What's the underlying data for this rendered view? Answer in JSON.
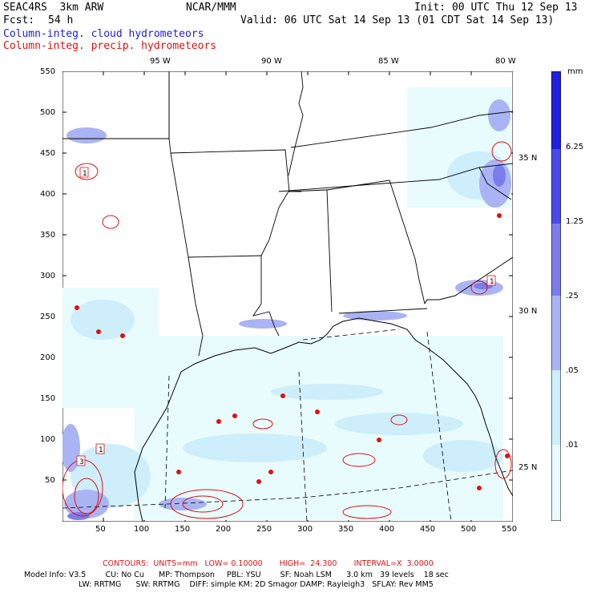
{
  "header": {
    "model_title": "SEAC4RS  3km ARW",
    "org": "NCAR/MMM",
    "init": "Init: 00 UTC Thu 12 Sep 13",
    "fcst_label": "Fcst:",
    "fcst_value": "54 h",
    "valid": "Valid: 06 UTC Sat 14 Sep 13 (01 CDT Sat 14 Sep 13)",
    "field_cloud": "Column-integ. cloud hydrometeors",
    "field_precip": "Column-integ. precip. hydrometeors"
  },
  "map": {
    "lon_labels": [
      "95 W",
      "90 W",
      "85 W",
      "80 W"
    ],
    "lat_labels": [
      "35 N",
      "30 N",
      "25 N"
    ],
    "x_ticks": [
      "50",
      "100",
      "150",
      "200",
      "250",
      "300",
      "350",
      "400",
      "450",
      "500",
      "550"
    ],
    "y_ticks": [
      "550",
      "500",
      "450",
      "400",
      "350",
      "300",
      "250",
      "200",
      "150",
      "100",
      "50"
    ],
    "contour_labels": [
      "1",
      "1",
      "3",
      "1"
    ]
  },
  "colorbar": {
    "units": "mm",
    "levels": [
      "6.25",
      "1.25",
      ".25",
      ".05",
      ".01"
    ],
    "colors": [
      "#2020e0",
      "#4a4ae8",
      "#7c7cec",
      "#aab4f4",
      "#cdeefa",
      "#e8fbfd",
      "#ffffff"
    ]
  },
  "footer": {
    "contours": "CONTOURS:  UNITS=mm   LOW= 0.10000       HIGH=  24.300       INTERVAL=X  3.0000",
    "model_line1": "Model Info: V3.5        CU: No Cu      MP: Thompson     PBL: YSU        SF: Noah LSM      3.0 km   39 levels    18 sec",
    "model_line2": "LW: RRTMG      SW: RRTMG    DIFF: simple KM: 2D Smagor DAMP: Rayleigh3   SFLAY: Rev MM5"
  }
}
